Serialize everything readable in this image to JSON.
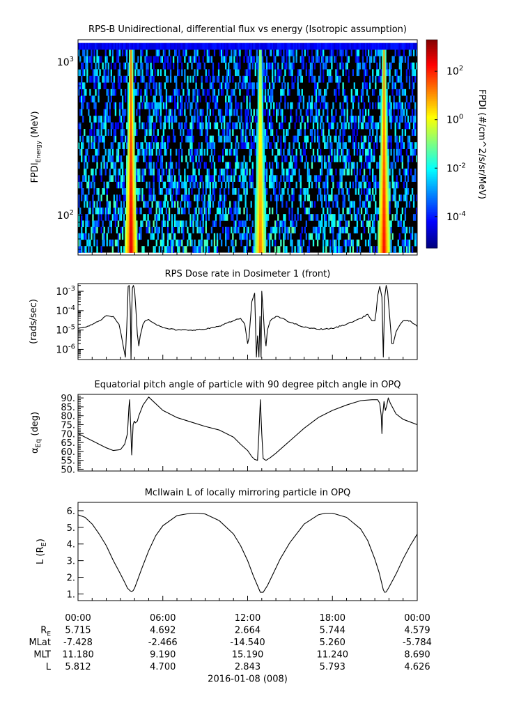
{
  "chart_data": [
    {
      "type": "heatmap",
      "title": "RPS-B  Unidirectional, differential flux vs energy (Isotropic assumption)",
      "ylabel_main": "FPDI",
      "ylabel_sub": "Energy",
      "ylabel_unit": "(MeV)",
      "yscale": "log",
      "ylim": [
        55,
        1400
      ],
      "yticks": [
        {
          "value": 100,
          "base": "10",
          "exp": "2"
        },
        {
          "value": 1000,
          "base": "10",
          "exp": "3"
        }
      ],
      "energy_bins": [
        60,
        66,
        73,
        80,
        88,
        97,
        107,
        118,
        130,
        143,
        158,
        174,
        192,
        212,
        234,
        258,
        285,
        315,
        348,
        385,
        425,
        470,
        520,
        575,
        635,
        700,
        775,
        855,
        945,
        1045,
        1150,
        1270
      ],
      "time_range_hours": [
        0,
        24
      ],
      "bursts": [
        {
          "center_hour": 3.75,
          "peak_log_flux": 2.5
        },
        {
          "center_hour": 12.9,
          "peak_log_flux": 1.5
        },
        {
          "center_hour": 21.65,
          "peak_log_flux": 2.3
        }
      ],
      "colorbar": {
        "label": "FPDI (#/cm^2/s/sr/MeV)",
        "log_range": [
          -5.3,
          3.3
        ],
        "ticks": [
          {
            "value": 2,
            "base": "10",
            "exp": "2"
          },
          {
            "value": 0,
            "base": "10",
            "exp": "0"
          },
          {
            "value": -2,
            "base": "10",
            "exp": "-2"
          },
          {
            "value": -4,
            "base": "10",
            "exp": "-4"
          }
        ]
      }
    },
    {
      "type": "line",
      "title": "RPS  Dose rate in Dosimeter 1 (front)",
      "ylabel": "(rads/sec)",
      "yscale": "log",
      "ylim": [
        3e-07,
        0.0025
      ],
      "yticks": [
        {
          "value": 1e-06,
          "base": "10",
          "exp": "-6"
        },
        {
          "value": 1e-05,
          "base": "10",
          "exp": "-5"
        },
        {
          "value": 0.0001,
          "base": "10",
          "exp": "-4"
        },
        {
          "value": 0.001,
          "base": "10",
          "exp": "-3"
        }
      ],
      "x_hours": [
        0,
        0.5,
        1,
        1.5,
        2,
        2.5,
        2.9,
        3.05,
        3.2,
        3.35,
        3.45,
        3.55,
        3.62,
        3.7,
        3.75,
        3.8,
        3.85,
        3.92,
        4.0,
        4.1,
        4.2,
        4.3,
        4.4,
        4.5,
        4.6,
        4.75,
        5.0,
        5.5,
        6.0,
        7,
        8,
        9,
        10,
        11,
        11.5,
        11.8,
        12.0,
        12.1,
        12.2,
        12.3,
        12.5,
        12.62,
        12.7,
        12.8,
        12.87,
        12.95,
        13.0,
        13.1,
        13.2,
        13.3,
        13.4,
        13.6,
        14.0,
        14.5,
        15.0,
        16,
        17,
        18,
        19,
        20,
        20.5,
        20.8,
        21.0,
        21.1,
        21.2,
        21.35,
        21.5,
        21.6,
        21.7,
        21.8,
        21.9,
        22.05,
        22.2,
        22.3,
        22.5,
        22.8,
        23.0,
        23.5,
        24.0
      ],
      "y": [
        1.2e-05,
        1.4e-05,
        1.9e-05,
        3e-05,
        5.5e-05,
        5e-05,
        2e-05,
        6e-06,
        1.5e-06,
        4e-07,
        1.5e-05,
        0.0018,
        0.002,
        0.0001,
        3e-07,
        0.0001,
        0.0015,
        0.002,
        0.0012,
        0.0001,
        6e-06,
        1.5e-06,
        5e-06,
        1e-05,
        2e-05,
        3e-05,
        3.5e-05,
        2e-05,
        1.3e-05,
        1e-05,
        1e-05,
        1.1e-05,
        1.6e-05,
        3e-05,
        4e-05,
        2e-05,
        2e-06,
        4e-06,
        4e-05,
        0.0003,
        0.0008,
        4e-07,
        5e-06,
        4e-07,
        5e-05,
        4e-07,
        0.001,
        0.0001,
        6e-06,
        1.5e-06,
        1e-05,
        3e-05,
        5e-05,
        4e-05,
        2.5e-05,
        1.4e-05,
        1.1e-05,
        1.2e-05,
        2e-05,
        4e-05,
        6.5e-05,
        3e-05,
        3e-05,
        0.0001,
        0.0006,
        0.0018,
        0.0005,
        4e-07,
        0.0005,
        0.002,
        0.001,
        5e-05,
        2e-06,
        2e-06,
        8e-06,
        2e-05,
        3e-05,
        3e-05,
        1.5e-05
      ]
    },
    {
      "type": "line",
      "title": "Equatorial pitch angle of particle with 90 degree pitch angle in OPQ",
      "ylabel": "α",
      "ylabel_sub": "Eq",
      "ylabel_unit": "(deg)",
      "ylim": [
        49,
        92
      ],
      "yticks": [
        "50.",
        "55.",
        "60.",
        "65.",
        "70.",
        "75.",
        "80.",
        "85.",
        "90."
      ],
      "x_hours": [
        0,
        0.5,
        1,
        1.5,
        2,
        2.5,
        3.0,
        3.3,
        3.5,
        3.6,
        3.65,
        3.72,
        3.8,
        3.85,
        3.9,
        3.98,
        4.05,
        4.2,
        4.3,
        4.6,
        5.0,
        5.2,
        5.6,
        6.0,
        7,
        8,
        9,
        10,
        11,
        11.5,
        12.0,
        12.3,
        12.5,
        12.7,
        12.8,
        12.9,
        13.0,
        13.1,
        13.3,
        13.6,
        14,
        15,
        16,
        17,
        18,
        19,
        20,
        20.8,
        21.2,
        21.35,
        21.45,
        21.5,
        21.55,
        21.65,
        21.75,
        21.85,
        21.95,
        22.1,
        22.3,
        22.5,
        23.0,
        24.0
      ],
      "y": [
        70,
        68,
        66,
        64,
        62,
        60.5,
        61,
        64,
        70,
        85,
        89,
        75,
        58,
        66,
        75,
        77,
        76,
        77,
        80,
        86,
        90.5,
        89,
        86,
        83,
        79,
        76.5,
        74,
        72,
        68,
        64,
        60.5,
        57,
        55.5,
        55,
        70,
        89,
        70,
        56,
        55,
        56.5,
        59,
        66,
        73,
        79,
        83,
        86,
        88.5,
        89,
        89,
        87,
        80,
        70,
        80,
        88,
        83,
        86,
        90,
        87,
        84,
        81,
        78,
        75
      ]
    },
    {
      "type": "line",
      "title": "McIlwain L of locally mirroring particle in OPQ",
      "ylabel": "L (R",
      "ylabel_sub": "E",
      "ylabel_tail": ")",
      "ylim": [
        0.6,
        6.5
      ],
      "yticks": [
        "1.",
        "2.",
        "3.",
        "4.",
        "5.",
        "6."
      ],
      "x_hours": [
        0,
        0.5,
        1,
        1.5,
        2,
        2.5,
        3.0,
        3.3,
        3.5,
        3.7,
        3.8,
        3.9,
        4.0,
        4.2,
        4.5,
        5.0,
        5.5,
        6.0,
        7.0,
        8.0,
        8.5,
        9.0,
        10.0,
        11.0,
        11.5,
        12.0,
        12.4,
        12.7,
        12.9,
        13.1,
        13.4,
        13.8,
        14.3,
        15.0,
        16.0,
        17.0,
        17.5,
        18.0,
        19.0,
        20.0,
        20.5,
        21.0,
        21.3,
        21.5,
        21.6,
        21.7,
        21.8,
        22.0,
        22.5,
        23.0,
        23.5,
        24.0
      ],
      "y": [
        5.75,
        5.6,
        5.2,
        4.6,
        3.9,
        3.0,
        2.2,
        1.7,
        1.35,
        1.18,
        1.15,
        1.2,
        1.35,
        1.8,
        2.5,
        3.6,
        4.5,
        5.1,
        5.7,
        5.85,
        5.85,
        5.8,
        5.4,
        4.6,
        3.9,
        3.0,
        2.1,
        1.5,
        1.1,
        1.1,
        1.5,
        2.2,
        3.1,
        4.1,
        5.2,
        5.75,
        5.85,
        5.85,
        5.6,
        4.9,
        4.2,
        3.1,
        2.3,
        1.6,
        1.25,
        1.1,
        1.12,
        1.4,
        2.2,
        3.1,
        3.9,
        4.6
      ]
    }
  ],
  "ephemeris": {
    "row_labels": [
      {
        "main": "R",
        "sub": "E"
      },
      {
        "main": "MLat",
        "sub": ""
      },
      {
        "main": "MLT",
        "sub": ""
      },
      {
        "main": "L",
        "sub": ""
      }
    ],
    "times": [
      "00:00",
      "06:00",
      "12:00",
      "18:00",
      "00:00"
    ],
    "values": [
      [
        "5.715",
        "4.692",
        "2.664",
        "5.744",
        "4.579"
      ],
      [
        "-7.428",
        "-2.466",
        "-14.540",
        "5.260",
        "-5.784"
      ],
      [
        "11.180",
        "9.190",
        "15.190",
        "11.240",
        "8.690"
      ],
      [
        "5.812",
        "4.700",
        "2.843",
        "5.793",
        "4.626"
      ]
    ],
    "date_label": "2016-01-08 (008)"
  },
  "colors": {
    "background": "#ffffff",
    "line": "#000000",
    "heatmap_background": "#000000"
  }
}
